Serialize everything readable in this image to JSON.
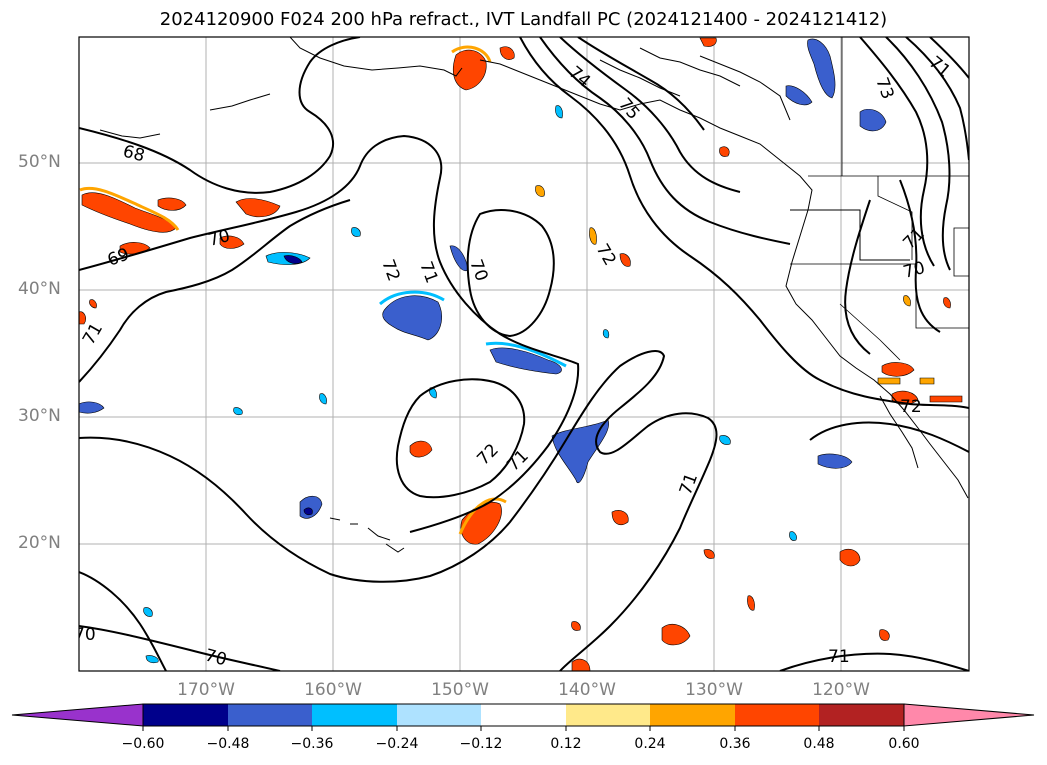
{
  "title": "2024120900 F024 200 hPa refract., IVT Landfall PC (2024121400 - 2024121412)",
  "map": {
    "lat_labels": [
      "50°N",
      "40°N",
      "30°N",
      "20°N"
    ],
    "lon_labels": [
      "170°W",
      "160°W",
      "150°W",
      "140°W",
      "130°W",
      "120°W"
    ],
    "contour_labels": [
      {
        "text": "68"
      },
      {
        "text": "69"
      },
      {
        "text": "70"
      },
      {
        "text": "70"
      },
      {
        "text": "70"
      },
      {
        "text": "70"
      },
      {
        "text": "70"
      },
      {
        "text": "71"
      },
      {
        "text": "71"
      },
      {
        "text": "71"
      },
      {
        "text": "71"
      },
      {
        "text": "71"
      },
      {
        "text": "71"
      },
      {
        "text": "72"
      },
      {
        "text": "72"
      },
      {
        "text": "72"
      },
      {
        "text": "72"
      },
      {
        "text": "73"
      },
      {
        "text": "74"
      },
      {
        "text": "75"
      },
      {
        "text": "71"
      }
    ]
  },
  "colorbar": {
    "ticks": [
      "−0.60",
      "−0.48",
      "−0.36",
      "−0.24",
      "−0.12",
      "0.12",
      "0.24",
      "0.36",
      "0.48",
      "0.60"
    ],
    "colors": [
      "#9932cc",
      "#00008b",
      "#3a5fcd",
      "#00bfff",
      "#aee2ff",
      "#ffffff",
      "#ffe98a",
      "#ffa500",
      "#ff4500",
      "#b22222",
      "#ff88aa"
    ]
  }
}
